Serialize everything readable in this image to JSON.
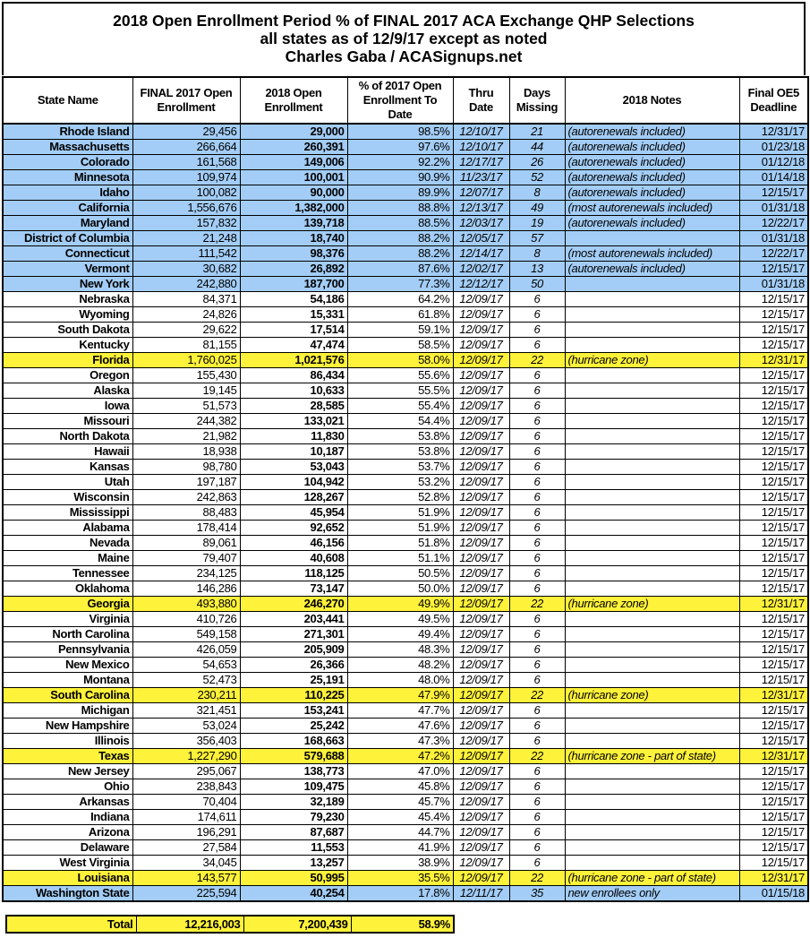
{
  "title": {
    "line1": "2018 Open Enrollment Period % of FINAL 2017 ACA Exchange QHP Selections",
    "line2": "all states as of 12/9/17 except as noted",
    "line3": "Charles Gaba / ACASignups.net"
  },
  "colors": {
    "blue": "#a3cdf6",
    "yellow": "#fff23a"
  },
  "headers": [
    "State Name",
    "FINAL 2017 Open Enrollment",
    "2018 Open Enrollment",
    "% of 2017 Open Enrollment To Date",
    "Thru Date",
    "Days Missing",
    "2018 Notes",
    "Final OE5 Deadline"
  ],
  "rows": [
    {
      "state": "Rhode Island",
      "final2017": "29,456",
      "oe2018": "29,000",
      "pct": "98.5%",
      "thru": "12/10/17",
      "days": "21",
      "notes": "(autorenewals included)",
      "deadline": "12/31/17",
      "highlight": "blue"
    },
    {
      "state": "Massachusetts",
      "final2017": "266,664",
      "oe2018": "260,391",
      "pct": "97.6%",
      "thru": "12/10/17",
      "days": "44",
      "notes": "(autorenewals included)",
      "deadline": "01/23/18",
      "highlight": "blue"
    },
    {
      "state": "Colorado",
      "final2017": "161,568",
      "oe2018": "149,006",
      "pct": "92.2%",
      "thru": "12/17/17",
      "days": "26",
      "notes": "(autorenewals included)",
      "deadline": "01/12/18",
      "highlight": "blue"
    },
    {
      "state": "Minnesota",
      "final2017": "109,974",
      "oe2018": "100,001",
      "pct": "90.9%",
      "thru": "11/23/17",
      "days": "52",
      "notes": "(autorenewals included)",
      "deadline": "01/14/18",
      "highlight": "blue"
    },
    {
      "state": "Idaho",
      "final2017": "100,082",
      "oe2018": "90,000",
      "pct": "89.9%",
      "thru": "12/07/17",
      "days": "8",
      "notes": "(autorenewals included)",
      "deadline": "12/15/17",
      "highlight": "blue"
    },
    {
      "state": "California",
      "final2017": "1,556,676",
      "oe2018": "1,382,000",
      "pct": "88.8%",
      "thru": "12/13/17",
      "days": "49",
      "notes": "(most autorenewals included)",
      "deadline": "01/31/18",
      "highlight": "blue"
    },
    {
      "state": "Maryland",
      "final2017": "157,832",
      "oe2018": "139,718",
      "pct": "88.5%",
      "thru": "12/03/17",
      "days": "19",
      "notes": "(autorenewals included)",
      "deadline": "12/22/17",
      "highlight": "blue"
    },
    {
      "state": "District of Columbia",
      "final2017": "21,248",
      "oe2018": "18,740",
      "pct": "88.2%",
      "thru": "12/05/17",
      "days": "57",
      "notes": "",
      "deadline": "01/31/18",
      "highlight": "blue"
    },
    {
      "state": "Connecticut",
      "final2017": "111,542",
      "oe2018": "98,376",
      "pct": "88.2%",
      "thru": "12/14/17",
      "days": "8",
      "notes": "(most autorenewals included)",
      "deadline": "12/22/17",
      "highlight": "blue"
    },
    {
      "state": "Vermont",
      "final2017": "30,682",
      "oe2018": "26,892",
      "pct": "87.6%",
      "thru": "12/02/17",
      "days": "13",
      "notes": "(autorenewals included)",
      "deadline": "12/15/17",
      "highlight": "blue"
    },
    {
      "state": "New York",
      "final2017": "242,880",
      "oe2018": "187,700",
      "pct": "77.3%",
      "thru": "12/12/17",
      "days": "50",
      "notes": "",
      "deadline": "01/31/18",
      "highlight": "blue"
    },
    {
      "state": "Nebraska",
      "final2017": "84,371",
      "oe2018": "54,186",
      "pct": "64.2%",
      "thru": "12/09/17",
      "days": "6",
      "notes": "",
      "deadline": "12/15/17",
      "highlight": "none"
    },
    {
      "state": "Wyoming",
      "final2017": "24,826",
      "oe2018": "15,331",
      "pct": "61.8%",
      "thru": "12/09/17",
      "days": "6",
      "notes": "",
      "deadline": "12/15/17",
      "highlight": "none"
    },
    {
      "state": "South Dakota",
      "final2017": "29,622",
      "oe2018": "17,514",
      "pct": "59.1%",
      "thru": "12/09/17",
      "days": "6",
      "notes": "",
      "deadline": "12/15/17",
      "highlight": "none"
    },
    {
      "state": "Kentucky",
      "final2017": "81,155",
      "oe2018": "47,474",
      "pct": "58.5%",
      "thru": "12/09/17",
      "days": "6",
      "notes": "",
      "deadline": "12/15/17",
      "highlight": "none"
    },
    {
      "state": "Florida",
      "final2017": "1,760,025",
      "oe2018": "1,021,576",
      "pct": "58.0%",
      "thru": "12/09/17",
      "days": "22",
      "notes": "(hurricane zone)",
      "deadline": "12/31/17",
      "highlight": "yellow"
    },
    {
      "state": "Oregon",
      "final2017": "155,430",
      "oe2018": "86,434",
      "pct": "55.6%",
      "thru": "12/09/17",
      "days": "6",
      "notes": "",
      "deadline": "12/15/17",
      "highlight": "none"
    },
    {
      "state": "Alaska",
      "final2017": "19,145",
      "oe2018": "10,633",
      "pct": "55.5%",
      "thru": "12/09/17",
      "days": "6",
      "notes": "",
      "deadline": "12/15/17",
      "highlight": "none"
    },
    {
      "state": "Iowa",
      "final2017": "51,573",
      "oe2018": "28,585",
      "pct": "55.4%",
      "thru": "12/09/17",
      "days": "6",
      "notes": "",
      "deadline": "12/15/17",
      "highlight": "none"
    },
    {
      "state": "Missouri",
      "final2017": "244,382",
      "oe2018": "133,021",
      "pct": "54.4%",
      "thru": "12/09/17",
      "days": "6",
      "notes": "",
      "deadline": "12/15/17",
      "highlight": "none"
    },
    {
      "state": "North Dakota",
      "final2017": "21,982",
      "oe2018": "11,830",
      "pct": "53.8%",
      "thru": "12/09/17",
      "days": "6",
      "notes": "",
      "deadline": "12/15/17",
      "highlight": "none"
    },
    {
      "state": "Hawaii",
      "final2017": "18,938",
      "oe2018": "10,187",
      "pct": "53.8%",
      "thru": "12/09/17",
      "days": "6",
      "notes": "",
      "deadline": "12/15/17",
      "highlight": "none"
    },
    {
      "state": "Kansas",
      "final2017": "98,780",
      "oe2018": "53,043",
      "pct": "53.7%",
      "thru": "12/09/17",
      "days": "6",
      "notes": "",
      "deadline": "12/15/17",
      "highlight": "none"
    },
    {
      "state": "Utah",
      "final2017": "197,187",
      "oe2018": "104,942",
      "pct": "53.2%",
      "thru": "12/09/17",
      "days": "6",
      "notes": "",
      "deadline": "12/15/17",
      "highlight": "none"
    },
    {
      "state": "Wisconsin",
      "final2017": "242,863",
      "oe2018": "128,267",
      "pct": "52.8%",
      "thru": "12/09/17",
      "days": "6",
      "notes": "",
      "deadline": "12/15/17",
      "highlight": "none"
    },
    {
      "state": "Mississippi",
      "final2017": "88,483",
      "oe2018": "45,954",
      "pct": "51.9%",
      "thru": "12/09/17",
      "days": "6",
      "notes": "",
      "deadline": "12/15/17",
      "highlight": "none"
    },
    {
      "state": "Alabama",
      "final2017": "178,414",
      "oe2018": "92,652",
      "pct": "51.9%",
      "thru": "12/09/17",
      "days": "6",
      "notes": "",
      "deadline": "12/15/17",
      "highlight": "none"
    },
    {
      "state": "Nevada",
      "final2017": "89,061",
      "oe2018": "46,156",
      "pct": "51.8%",
      "thru": "12/09/17",
      "days": "6",
      "notes": "",
      "deadline": "12/15/17",
      "highlight": "none"
    },
    {
      "state": "Maine",
      "final2017": "79,407",
      "oe2018": "40,608",
      "pct": "51.1%",
      "thru": "12/09/17",
      "days": "6",
      "notes": "",
      "deadline": "12/15/17",
      "highlight": "none"
    },
    {
      "state": "Tennessee",
      "final2017": "234,125",
      "oe2018": "118,125",
      "pct": "50.5%",
      "thru": "12/09/17",
      "days": "6",
      "notes": "",
      "deadline": "12/15/17",
      "highlight": "none"
    },
    {
      "state": "Oklahoma",
      "final2017": "146,286",
      "oe2018": "73,147",
      "pct": "50.0%",
      "thru": "12/09/17",
      "days": "6",
      "notes": "",
      "deadline": "12/15/17",
      "highlight": "none"
    },
    {
      "state": "Georgia",
      "final2017": "493,880",
      "oe2018": "246,270",
      "pct": "49.9%",
      "thru": "12/09/17",
      "days": "22",
      "notes": "(hurricane zone)",
      "deadline": "12/31/17",
      "highlight": "yellow"
    },
    {
      "state": "Virginia",
      "final2017": "410,726",
      "oe2018": "203,441",
      "pct": "49.5%",
      "thru": "12/09/17",
      "days": "6",
      "notes": "",
      "deadline": "12/15/17",
      "highlight": "none"
    },
    {
      "state": "North Carolina",
      "final2017": "549,158",
      "oe2018": "271,301",
      "pct": "49.4%",
      "thru": "12/09/17",
      "days": "6",
      "notes": "",
      "deadline": "12/15/17",
      "highlight": "none"
    },
    {
      "state": "Pennsylvania",
      "final2017": "426,059",
      "oe2018": "205,909",
      "pct": "48.3%",
      "thru": "12/09/17",
      "days": "6",
      "notes": "",
      "deadline": "12/15/17",
      "highlight": "none"
    },
    {
      "state": "New Mexico",
      "final2017": "54,653",
      "oe2018": "26,366",
      "pct": "48.2%",
      "thru": "12/09/17",
      "days": "6",
      "notes": "",
      "deadline": "12/15/17",
      "highlight": "none"
    },
    {
      "state": "Montana",
      "final2017": "52,473",
      "oe2018": "25,191",
      "pct": "48.0%",
      "thru": "12/09/17",
      "days": "6",
      "notes": "",
      "deadline": "12/15/17",
      "highlight": "none"
    },
    {
      "state": "South Carolina",
      "final2017": "230,211",
      "oe2018": "110,225",
      "pct": "47.9%",
      "thru": "12/09/17",
      "days": "22",
      "notes": "(hurricane zone)",
      "deadline": "12/31/17",
      "highlight": "yellow"
    },
    {
      "state": "Michigan",
      "final2017": "321,451",
      "oe2018": "153,241",
      "pct": "47.7%",
      "thru": "12/09/17",
      "days": "6",
      "notes": "",
      "deadline": "12/15/17",
      "highlight": "none"
    },
    {
      "state": "New Hampshire",
      "final2017": "53,024",
      "oe2018": "25,242",
      "pct": "47.6%",
      "thru": "12/09/17",
      "days": "6",
      "notes": "",
      "deadline": "12/15/17",
      "highlight": "none"
    },
    {
      "state": "Illinois",
      "final2017": "356,403",
      "oe2018": "168,663",
      "pct": "47.3%",
      "thru": "12/09/17",
      "days": "6",
      "notes": "",
      "deadline": "12/15/17",
      "highlight": "none"
    },
    {
      "state": "Texas",
      "final2017": "1,227,290",
      "oe2018": "579,688",
      "pct": "47.2%",
      "thru": "12/09/17",
      "days": "22",
      "notes": "(hurricane zone - part of state)",
      "deadline": "12/31/17",
      "highlight": "yellow"
    },
    {
      "state": "New Jersey",
      "final2017": "295,067",
      "oe2018": "138,773",
      "pct": "47.0%",
      "thru": "12/09/17",
      "days": "6",
      "notes": "",
      "deadline": "12/15/17",
      "highlight": "none"
    },
    {
      "state": "Ohio",
      "final2017": "238,843",
      "oe2018": "109,475",
      "pct": "45.8%",
      "thru": "12/09/17",
      "days": "6",
      "notes": "",
      "deadline": "12/15/17",
      "highlight": "none"
    },
    {
      "state": "Arkansas",
      "final2017": "70,404",
      "oe2018": "32,189",
      "pct": "45.7%",
      "thru": "12/09/17",
      "days": "6",
      "notes": "",
      "deadline": "12/15/17",
      "highlight": "none"
    },
    {
      "state": "Indiana",
      "final2017": "174,611",
      "oe2018": "79,230",
      "pct": "45.4%",
      "thru": "12/09/17",
      "days": "6",
      "notes": "",
      "deadline": "12/15/17",
      "highlight": "none"
    },
    {
      "state": "Arizona",
      "final2017": "196,291",
      "oe2018": "87,687",
      "pct": "44.7%",
      "thru": "12/09/17",
      "days": "6",
      "notes": "",
      "deadline": "12/15/17",
      "highlight": "none"
    },
    {
      "state": "Delaware",
      "final2017": "27,584",
      "oe2018": "11,553",
      "pct": "41.9%",
      "thru": "12/09/17",
      "days": "6",
      "notes": "",
      "deadline": "12/15/17",
      "highlight": "none"
    },
    {
      "state": "West Virginia",
      "final2017": "34,045",
      "oe2018": "13,257",
      "pct": "38.9%",
      "thru": "12/09/17",
      "days": "6",
      "notes": "",
      "deadline": "12/15/17",
      "highlight": "none"
    },
    {
      "state": "Louisiana",
      "final2017": "143,577",
      "oe2018": "50,995",
      "pct": "35.5%",
      "thru": "12/09/17",
      "days": "22",
      "notes": "(hurricane zone - part of state)",
      "deadline": "12/31/17",
      "highlight": "yellow"
    },
    {
      "state": "Washington State",
      "final2017": "225,594",
      "oe2018": "40,254",
      "pct": "17.8%",
      "thru": "12/11/17",
      "days": "35",
      "notes": "new enrollees only",
      "deadline": "01/15/18",
      "highlight": "blue"
    }
  ],
  "total": {
    "label": "Total",
    "final2017": "12,216,003",
    "oe2018": "7,200,439",
    "pct": "58.9%"
  }
}
